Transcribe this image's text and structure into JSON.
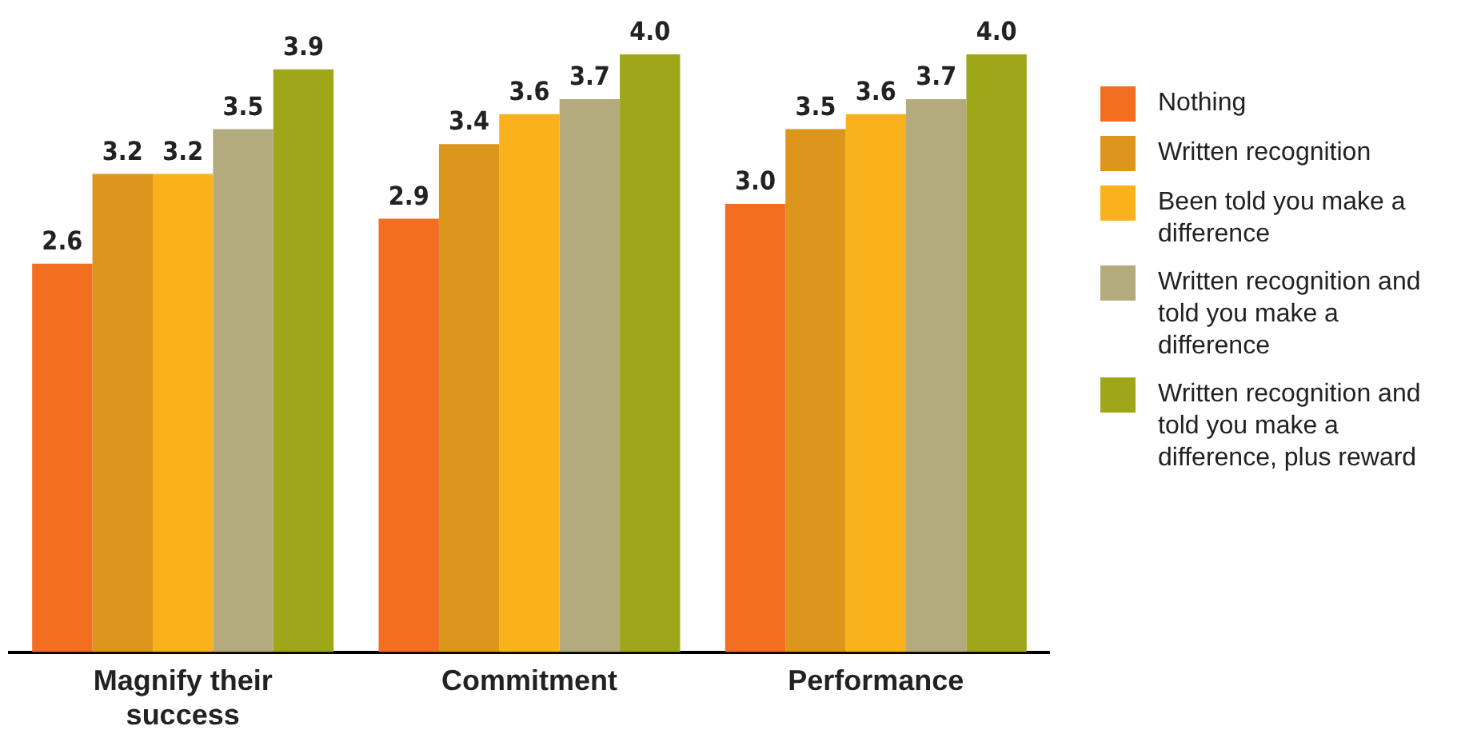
{
  "chart_data": {
    "type": "bar",
    "categories": [
      "Magnify their success",
      "Commitment",
      "Performance"
    ],
    "series": [
      {
        "name": "Nothing",
        "color": "#f26f21",
        "values": [
          2.6,
          2.9,
          3
        ],
        "value_labels": [
          "2.6",
          "2.9",
          "3.0"
        ]
      },
      {
        "name": "Written recognition",
        "color": "#dd961c",
        "values": [
          3.2,
          3.4,
          3.5
        ],
        "value_labels": [
          "3.2",
          "3.4",
          "3.5"
        ]
      },
      {
        "name": "Been told you make a difference",
        "color": "#f9b21b",
        "values": [
          3.2,
          3.6,
          3.6
        ],
        "value_labels": [
          "3.2",
          "3.6",
          "3.6"
        ]
      },
      {
        "name": "Written recognition and told you make a difference",
        "color": "#b3ab7d",
        "values": [
          3.5,
          3.7,
          3.7
        ],
        "value_labels": [
          "3.5",
          "3.7",
          "3.7"
        ]
      },
      {
        "name": "Written recognition and told you make a difference, plus reward",
        "color": "#9da719",
        "values": [
          3.9,
          4,
          4
        ],
        "value_labels": [
          "3.9",
          "4.0",
          "4.0"
        ]
      }
    ],
    "tick_labels": "x",
    "grid": false,
    "legend": "right"
  }
}
